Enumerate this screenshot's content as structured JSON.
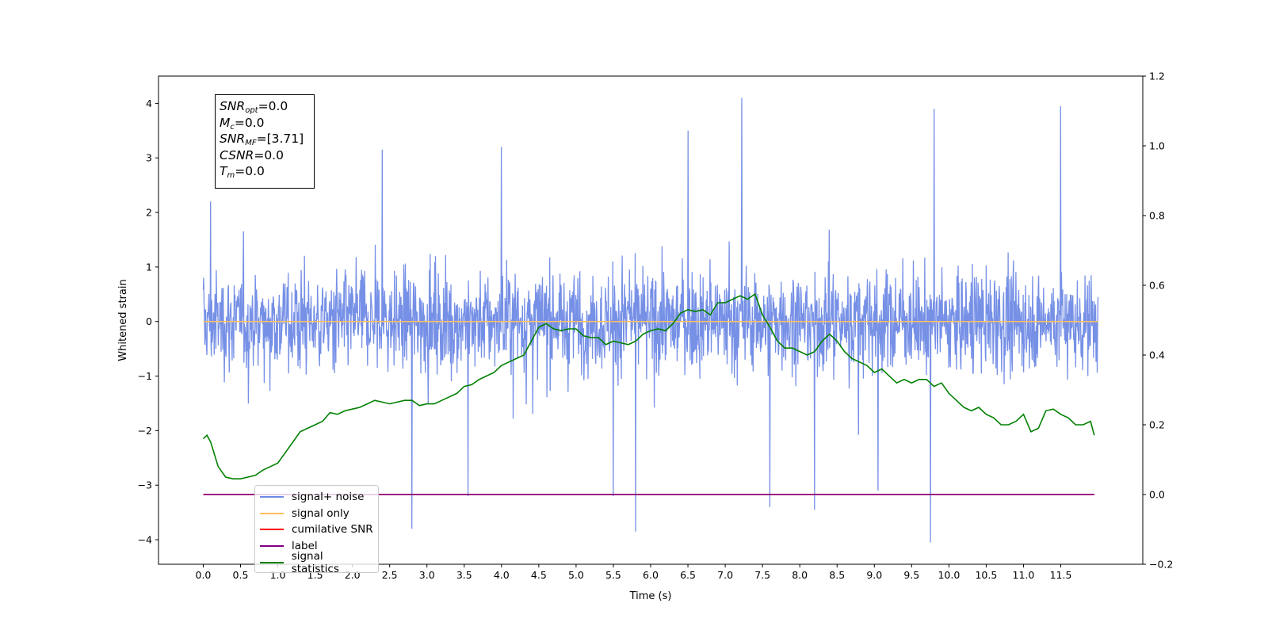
{
  "info_box": {
    "lines": [
      {
        "var": "SNR",
        "sub": "opt",
        "value": "=0.0"
      },
      {
        "var": "M",
        "sub": "c",
        "value": "=0.0"
      },
      {
        "var": "SNR",
        "sub": "MF",
        "value": "=[3.71]"
      },
      {
        "var": "CSNR",
        "sub": "",
        "value": "=0.0"
      },
      {
        "var": "T",
        "sub": "m",
        "value": "=0.0"
      }
    ]
  },
  "legend": {
    "items": [
      {
        "label": "signal+ noise",
        "color": "#6f8ae5"
      },
      {
        "label": "signal only",
        "color": "#ffbf60"
      },
      {
        "label": "cumilative SNR",
        "color": "#ff0000"
      },
      {
        "label": "label",
        "color": "#800080"
      },
      {
        "label": "signal statistics",
        "color": "#008000"
      }
    ]
  },
  "chart_data": {
    "type": "line",
    "xlabel": "Time (s)",
    "ylabel": "Whitened strain",
    "xlim": [
      -0.6,
      12.6
    ],
    "ylim": [
      -4.45,
      4.5
    ],
    "y2lim": [
      -0.2,
      1.2
    ],
    "x_ticks": [
      "0.0",
      "0.5",
      "1.0",
      "1.5",
      "2.0",
      "2.5",
      "3.0",
      "3.5",
      "4.0",
      "4.5",
      "5.0",
      "5.5",
      "6.0",
      "6.5",
      "7.0",
      "7.5",
      "8.0",
      "8.5",
      "9.0",
      "9.5",
      "10.0",
      "10.5",
      "11.0",
      "11.5"
    ],
    "y_ticks": [
      4,
      3,
      2,
      1,
      0,
      -1,
      -2,
      -3,
      -4
    ],
    "y2_ticks": [
      "1.2",
      "1.0",
      "0.8",
      "0.6",
      "0.4",
      "0.2",
      "0.0",
      "−0.2"
    ],
    "series": [
      {
        "name": "signal+ noise",
        "color": "#6f8ae5",
        "axis": "left",
        "x_range": [
          0,
          12
        ],
        "typical_range": [
          -1.6,
          1.6
        ],
        "spikes": [
          {
            "x": 2.8,
            "y": -3.8
          },
          {
            "x": 5.8,
            "y": -3.85
          },
          {
            "x": 9.75,
            "y": -4.05
          },
          {
            "x": 7.22,
            "y": 4.1
          },
          {
            "x": 9.8,
            "y": 3.9
          },
          {
            "x": 11.5,
            "y": 3.95
          },
          {
            "x": 6.5,
            "y": 3.5
          },
          {
            "x": 2.4,
            "y": 3.15
          },
          {
            "x": 4.0,
            "y": 3.2
          },
          {
            "x": 8.2,
            "y": -3.45
          },
          {
            "x": 7.6,
            "y": -3.4
          },
          {
            "x": 9.05,
            "y": -3.1
          },
          {
            "x": 0.1,
            "y": 2.2
          },
          {
            "x": 3.55,
            "y": -3.2
          },
          {
            "x": 5.5,
            "y": -3.2
          }
        ]
      },
      {
        "name": "signal only",
        "color": "#ffbf60",
        "axis": "left",
        "x": [
          0,
          12
        ],
        "y": [
          0,
          0
        ]
      },
      {
        "name": "cumilative SNR",
        "color": "#ff0000",
        "axis": "right",
        "x": [
          0,
          11.95
        ],
        "y": [
          0,
          0
        ]
      },
      {
        "name": "label",
        "color": "#800080",
        "axis": "right",
        "x": [
          0,
          11.95
        ],
        "y": [
          0,
          0
        ]
      },
      {
        "name": "signal statistics",
        "color": "#008000",
        "axis": "right",
        "x": [
          0.0,
          0.05,
          0.1,
          0.2,
          0.3,
          0.4,
          0.5,
          0.6,
          0.7,
          0.8,
          0.9,
          1.0,
          1.1,
          1.2,
          1.3,
          1.4,
          1.5,
          1.6,
          1.7,
          1.8,
          1.9,
          2.0,
          2.1,
          2.2,
          2.3,
          2.4,
          2.5,
          2.6,
          2.7,
          2.8,
          2.9,
          3.0,
          3.1,
          3.2,
          3.3,
          3.4,
          3.5,
          3.6,
          3.7,
          3.8,
          3.9,
          4.0,
          4.1,
          4.2,
          4.3,
          4.4,
          4.5,
          4.6,
          4.7,
          4.8,
          4.9,
          5.0,
          5.1,
          5.2,
          5.3,
          5.4,
          5.5,
          5.6,
          5.7,
          5.8,
          5.9,
          6.0,
          6.1,
          6.2,
          6.3,
          6.4,
          6.5,
          6.6,
          6.7,
          6.8,
          6.9,
          7.0,
          7.1,
          7.2,
          7.3,
          7.4,
          7.5,
          7.6,
          7.7,
          7.8,
          7.9,
          8.0,
          8.1,
          8.2,
          8.3,
          8.4,
          8.5,
          8.6,
          8.7,
          8.8,
          8.9,
          9.0,
          9.1,
          9.2,
          9.3,
          9.4,
          9.5,
          9.6,
          9.7,
          9.8,
          9.9,
          10.0,
          10.1,
          10.2,
          10.3,
          10.4,
          10.5,
          10.6,
          10.7,
          10.8,
          10.9,
          11.0,
          11.1,
          11.2,
          11.3,
          11.4,
          11.5,
          11.6,
          11.7,
          11.8,
          11.9,
          11.95
        ],
        "y": [
          0.16,
          0.17,
          0.15,
          0.08,
          0.05,
          0.045,
          0.045,
          0.05,
          0.055,
          0.07,
          0.08,
          0.09,
          0.12,
          0.15,
          0.18,
          0.19,
          0.2,
          0.21,
          0.235,
          0.23,
          0.24,
          0.245,
          0.25,
          0.26,
          0.27,
          0.265,
          0.26,
          0.265,
          0.27,
          0.27,
          0.255,
          0.26,
          0.26,
          0.27,
          0.28,
          0.29,
          0.31,
          0.315,
          0.33,
          0.34,
          0.35,
          0.37,
          0.38,
          0.39,
          0.4,
          0.44,
          0.48,
          0.49,
          0.475,
          0.47,
          0.475,
          0.475,
          0.455,
          0.45,
          0.45,
          0.43,
          0.44,
          0.435,
          0.43,
          0.44,
          0.46,
          0.47,
          0.475,
          0.47,
          0.49,
          0.52,
          0.53,
          0.525,
          0.53,
          0.515,
          0.55,
          0.55,
          0.56,
          0.57,
          0.56,
          0.575,
          0.515,
          0.48,
          0.44,
          0.42,
          0.42,
          0.41,
          0.4,
          0.41,
          0.44,
          0.46,
          0.44,
          0.41,
          0.39,
          0.38,
          0.37,
          0.35,
          0.36,
          0.34,
          0.32,
          0.33,
          0.32,
          0.33,
          0.33,
          0.31,
          0.32,
          0.29,
          0.27,
          0.25,
          0.24,
          0.25,
          0.23,
          0.22,
          0.2,
          0.2,
          0.21,
          0.23,
          0.18,
          0.19,
          0.24,
          0.245,
          0.23,
          0.22,
          0.2,
          0.2,
          0.21,
          0.17
        ]
      }
    ]
  }
}
